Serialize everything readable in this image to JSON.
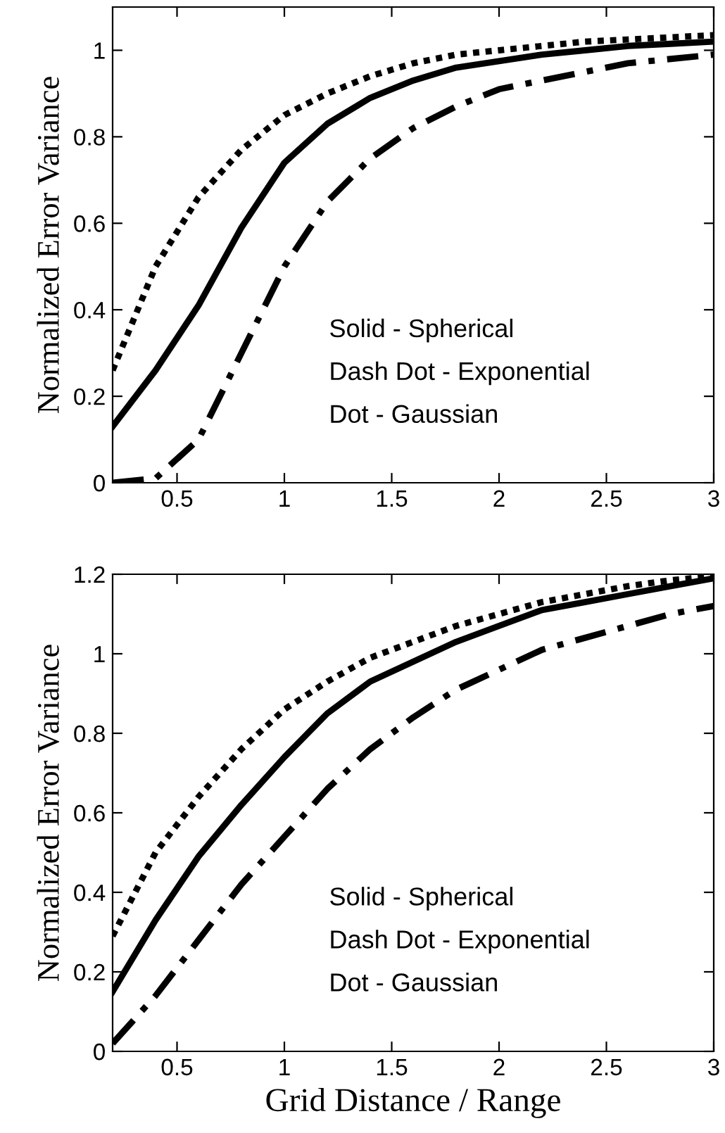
{
  "chart_data": [
    {
      "type": "line",
      "ylabel": "Normalized Error Variance",
      "x": [
        0.2,
        0.4,
        0.6,
        0.8,
        1.0,
        1.2,
        1.4,
        1.6,
        1.8,
        2.0,
        2.2,
        2.4,
        2.6,
        2.8,
        3.0
      ],
      "xlim": [
        0.2,
        3
      ],
      "ylim": [
        0,
        1.1
      ],
      "xticks": [
        0.5,
        1,
        1.5,
        2,
        2.5,
        3
      ],
      "yticks": [
        0,
        0.2,
        0.4,
        0.6,
        0.8,
        1
      ],
      "annotations": [
        "Solid - Spherical",
        "Dash Dot - Exponential",
        "Dot - Gaussian"
      ],
      "series": [
        {
          "color": "#000000",
          "line_style": "solid",
          "values": [
            0.13,
            0.26,
            0.41,
            0.59,
            0.74,
            0.83,
            0.89,
            0.93,
            0.96,
            0.975,
            0.99,
            1.0,
            1.01,
            1.015,
            1.02
          ]
        },
        {
          "color": "#000000",
          "line_style": "dashdot",
          "values": [
            0,
            0.01,
            0.1,
            0.3,
            0.5,
            0.65,
            0.75,
            0.82,
            0.87,
            0.91,
            0.93,
            0.95,
            0.97,
            0.98,
            0.99
          ]
        },
        {
          "color": "#000000",
          "line_style": "dotted",
          "values": [
            0.26,
            0.5,
            0.66,
            0.77,
            0.85,
            0.9,
            0.94,
            0.97,
            0.99,
            1.0,
            1.01,
            1.02,
            1.025,
            1.03,
            1.035
          ]
        }
      ]
    },
    {
      "type": "line",
      "xlabel": "Grid Distance / Range",
      "ylabel": "Normalized Error Variance",
      "x": [
        0.2,
        0.4,
        0.6,
        0.8,
        1.0,
        1.2,
        1.4,
        1.6,
        1.8,
        2.0,
        2.2,
        2.4,
        2.6,
        2.8,
        3.0
      ],
      "xlim": [
        0.2,
        3
      ],
      "ylim": [
        0,
        1.2
      ],
      "xticks": [
        0.5,
        1,
        1.5,
        2,
        2.5,
        3
      ],
      "yticks": [
        0,
        0.2,
        0.4,
        0.6,
        0.8,
        1,
        1.2
      ],
      "annotations": [
        "Solid - Spherical",
        "Dash Dot - Exponential",
        "Dot - Gaussian"
      ],
      "series": [
        {
          "color": "#000000",
          "line_style": "solid",
          "values": [
            0.15,
            0.33,
            0.49,
            0.62,
            0.74,
            0.85,
            0.93,
            0.98,
            1.03,
            1.07,
            1.11,
            1.13,
            1.15,
            1.17,
            1.19
          ]
        },
        {
          "color": "#000000",
          "line_style": "dashdot",
          "values": [
            0.02,
            0.14,
            0.28,
            0.42,
            0.54,
            0.66,
            0.76,
            0.84,
            0.91,
            0.96,
            1.01,
            1.04,
            1.07,
            1.1,
            1.12
          ]
        },
        {
          "color": "#000000",
          "line_style": "dotted",
          "values": [
            0.29,
            0.5,
            0.64,
            0.76,
            0.86,
            0.93,
            0.99,
            1.03,
            1.07,
            1.1,
            1.13,
            1.15,
            1.17,
            1.185,
            1.195
          ]
        }
      ]
    }
  ]
}
